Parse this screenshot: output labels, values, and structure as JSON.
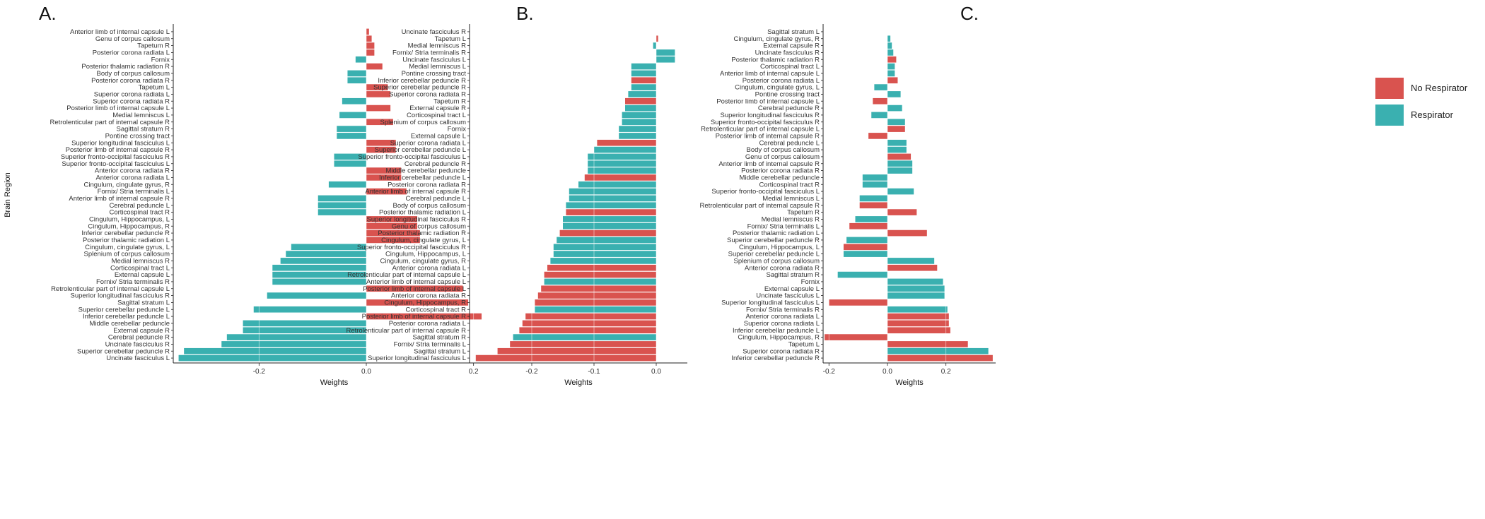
{
  "colors": {
    "no_respirator": "#d9534f",
    "respirator": "#3ab0b0",
    "axis": "#222222",
    "grid": "#ffffff"
  },
  "legend": [
    {
      "key": "no_respirator",
      "label": "No Respirator"
    },
    {
      "key": "respirator",
      "label": "Respirator"
    }
  ],
  "chart_data": [
    {
      "panel": "A.",
      "type": "bar",
      "orientation": "horizontal",
      "xlabel": "Weights",
      "ylabel": "Brain Region",
      "xticks": [
        -0.2,
        0.0,
        0.2
      ],
      "tick_labels": [
        "-0.2",
        "0.0",
        "0.2"
      ],
      "xlim": [
        -0.36,
        0.24
      ],
      "categories": [
        "Anterior limb of internal capsule L",
        "Genu of corpus callosum",
        "Tapetum R",
        "Posterior corona radiata L",
        "Fornix",
        "Posterior thalamic radiation R",
        "Body of corpus callosum",
        "Posterior corona radiata R",
        "Tapetum L",
        "Superior corona radiata L",
        "Superior corona radiata R",
        "Posterior limb of internal capsule L",
        "Medial lemniscus L",
        "Retrolenticular part of internal capsule R",
        "Sagittal stratum R",
        "Pontine crossing tract",
        "Superior longitudinal fasciculus L",
        "Posterior limb of internal capsule R",
        "Superior fronto-occipital fasciculus R",
        "Superior fronto-occipital fasciculus L",
        "Anterior corona radiata R",
        "Anterior corona radiata L",
        "Cingulum, cingulate gyrus, R",
        "Fornix/ Stria terminalis L",
        "Anterior limb of internal capsule R",
        "Cerebral peduncle L",
        "Corticospinal tract R",
        "Cingulum, Hippocampus, L",
        "Cingulum, Hippocampus, R",
        "Inferior cerebellar peduncle R",
        "Posterior thalamic radiation L",
        "Cingulum, cingulate gyrus, L",
        "Splenium of corpus callosum",
        "Medial lemniscus R",
        "Corticospinal tract L",
        "External capsule L",
        "Fornix/ Stria terminalis R",
        "Retrolenticular part of internal capsule L",
        "Superior longitudinal fasciculus R",
        "Sagittal stratum L",
        "Superior cerebellar peduncle L",
        "Inferior cerebellar peduncle L",
        "Middle cerebellar peduncle",
        "External capsule R",
        "Cerebral peduncle R",
        "Uncinate fasciculus R",
        "Superior cerebellar peduncle R",
        "Uncinate fasciculus L"
      ],
      "series": [
        {
          "name": "No Respirator",
          "values": [
            0.005,
            0.01,
            0.015,
            0.015,
            0.0,
            0.03,
            0.0,
            0.0,
            0.04,
            0.045,
            0.0,
            0.045,
            0.0,
            0.05,
            0.0,
            0.0,
            0.055,
            0.055,
            0.0,
            0.0,
            0.065,
            0.065,
            0.0,
            0.075,
            0.0,
            0.0,
            0.0,
            0.095,
            0.095,
            0.1,
            0.1,
            0.0,
            0.0,
            0.0,
            0.0,
            0.0,
            0.0,
            0.18,
            0.0,
            0.19,
            0.0,
            0.215,
            0.0,
            0.0,
            0.0,
            0.0,
            0.0,
            0.0
          ]
        },
        {
          "name": "Respirator",
          "values": [
            0.0,
            0.0,
            0.0,
            0.0,
            -0.02,
            0.0,
            -0.035,
            -0.035,
            0.0,
            0.0,
            -0.045,
            0.0,
            -0.05,
            0.0,
            -0.055,
            -0.055,
            0.0,
            0.0,
            -0.06,
            -0.06,
            0.0,
            0.0,
            -0.07,
            0.0,
            -0.09,
            -0.09,
            -0.09,
            0.0,
            0.0,
            0.0,
            0.0,
            -0.14,
            -0.15,
            -0.16,
            -0.175,
            -0.175,
            -0.175,
            0.0,
            -0.185,
            0.0,
            -0.21,
            0.0,
            -0.23,
            -0.23,
            -0.26,
            -0.27,
            -0.34,
            -0.35
          ]
        }
      ]
    },
    {
      "panel": "B.",
      "type": "bar",
      "orientation": "horizontal",
      "xlabel": "Weights",
      "ylabel": "",
      "xticks": [
        -0.2,
        -0.1,
        0.0
      ],
      "tick_labels": [
        "-0.2",
        "-0.1",
        "0.0"
      ],
      "xlim": [
        -0.3,
        0.05
      ],
      "categories": [
        "Uncinate fasciculus R",
        "Tapetum L",
        "Medial lemniscus R",
        "Fornix/ Stria terminalis R",
        "Uncinate fasciculus L",
        "Medial lemniscus L",
        "Pontine crossing tract",
        "Inferior cerebellar peduncle R",
        "Superior cerebellar peduncle R",
        "Superior corona radiata R",
        "Tapetum R",
        "External capsule R",
        "Corticospinal tract L",
        "Splenium of corpus callosum",
        "Fornix",
        "External capsule L",
        "Superior corona radiata L",
        "Superior cerebellar peduncle L",
        "Superior fronto-occipital fasciculus L",
        "Cerebral peduncle R",
        "Middle cerebellar peduncle",
        "Inferior cerebellar peduncle L",
        "Posterior corona radiata R",
        "Anterior limb of internal capsule R",
        "Cerebral peduncle L",
        "Body of corpus callosum",
        "Posterior thalamic radiation L",
        "Superior longitudinal fasciculus R",
        "Genu of corpus callosum",
        "Posterior thalamic radiation R",
        "Cingulum, cingulate gyrus, L",
        "Superior fronto-occipital fasciculus R",
        "Cingulum, Hippocampus, L",
        "Cingulum, cingulate gyrus, R",
        "Anterior corona radiata L",
        "Retrolenticular part of internal capsule L",
        "Anterior limb of internal capsule L",
        "Posterior limb of internal capsule L",
        "Anterior corona radiata R",
        "Cingulum, Hippocampus, R",
        "Corticospinal tract R",
        "Posterior limb of internal capsule R",
        "Posterior corona radiata L",
        "Retrolenticular part of internal capsule R",
        "Sagittal stratum R",
        "Fornix/ Stria terminalis L",
        "Sagittal stratum L",
        "Superior longitudinal fasciculus L"
      ],
      "series": [
        {
          "name": "No Respirator",
          "values": [
            0.0,
            0.003,
            0.0,
            0.0,
            0.0,
            0.0,
            0.0,
            -0.04,
            0.0,
            0.0,
            -0.05,
            0.0,
            0.0,
            0.0,
            0.0,
            0.0,
            -0.095,
            0.0,
            0.0,
            0.0,
            0.0,
            -0.115,
            0.0,
            0.0,
            0.0,
            0.0,
            -0.145,
            0.0,
            0.0,
            -0.155,
            0.0,
            0.0,
            0.0,
            0.0,
            -0.175,
            -0.18,
            0.0,
            -0.185,
            -0.19,
            -0.195,
            0.0,
            -0.21,
            -0.215,
            -0.22,
            0.0,
            -0.235,
            -0.255,
            -0.29
          ]
        },
        {
          "name": "Respirator",
          "values": [
            0.0,
            0.0,
            -0.005,
            0.03,
            0.03,
            -0.04,
            -0.04,
            0.0,
            -0.04,
            -0.045,
            0.0,
            -0.05,
            -0.055,
            -0.055,
            -0.06,
            -0.06,
            0.0,
            -0.1,
            -0.11,
            -0.11,
            -0.11,
            0.0,
            -0.125,
            -0.14,
            -0.14,
            -0.145,
            0.0,
            -0.15,
            -0.15,
            0.0,
            -0.16,
            -0.165,
            -0.165,
            -0.17,
            0.0,
            0.0,
            -0.18,
            0.0,
            0.0,
            0.0,
            -0.195,
            0.0,
            0.0,
            0.0,
            -0.23,
            0.0,
            0.0,
            0.0
          ]
        }
      ]
    },
    {
      "panel": "C.",
      "type": "bar",
      "orientation": "horizontal",
      "xlabel": "Weights",
      "ylabel": "",
      "xticks": [
        -0.2,
        0.0,
        0.2
      ],
      "tick_labels": [
        "-0.2",
        "0.0",
        "0.2"
      ],
      "xlim": [
        -0.22,
        0.37
      ],
      "categories": [
        "Sagittal stratum L",
        "Cingulum, cingulate gyrus, R",
        "External capsule R",
        "Uncinate fasciculus R",
        "Posterior thalamic radiation R",
        "Corticospinal tract L",
        "Anterior limb of internal capsule L",
        "Posterior corona radiata L",
        "Cingulum, cingulate gyrus, L",
        "Pontine crossing tract",
        "Posterior limb of internal capsule L",
        "Cerebral peduncle R",
        "Superior longitudinal fasciculus R",
        "Superior fronto-occipital fasciculus R",
        "Retrolenticular part of internal capsule L",
        "Posterior limb of internal capsule R",
        "Cerebral peduncle L",
        "Body of corpus callosum",
        "Genu of corpus callosum",
        "Anterior limb of internal capsule R",
        "Posterior corona radiata R",
        "Middle cerebellar peduncle",
        "Corticospinal tract R",
        "Superior fronto-occipital fasciculus L",
        "Medial lemniscus L",
        "Retrolenticular part of internal capsule R",
        "Tapetum R",
        "Medial lemniscus R",
        "Fornix/ Stria terminalis L",
        "Posterior thalamic radiation L",
        "Superior cerebellar peduncle R",
        "Cingulum, Hippocampus, L",
        "Superior cerebellar peduncle L",
        "Splenium of corpus callosum",
        "Anterior corona radiata R",
        "Sagittal stratum R",
        "Fornix",
        "External capsule L",
        "Uncinate fasciculus L",
        "Superior longitudinal fasciculus L",
        "Fornix/ Stria terminalis R",
        "Anterior corona radiata L",
        "Superior corona radiata L",
        "Inferior cerebellar peduncle L",
        "Cingulum, Hippocampus, R",
        "Tapetum L",
        "Superior corona radiata R",
        "Inferior cerebellar peduncle R"
      ],
      "series": [
        {
          "name": "No Respirator",
          "values": [
            0.0,
            0.0,
            0.0,
            0.0,
            0.03,
            0.0,
            0.0,
            0.035,
            0.0,
            0.0,
            -0.05,
            0.0,
            0.0,
            0.0,
            0.06,
            -0.065,
            0.0,
            0.0,
            0.08,
            0.0,
            0.0,
            0.0,
            0.0,
            0.0,
            0.0,
            -0.095,
            0.1,
            0.0,
            -0.13,
            0.135,
            0.0,
            -0.15,
            0.0,
            0.0,
            0.17,
            0.0,
            0.0,
            0.0,
            0.0,
            -0.2,
            0.0,
            0.21,
            0.21,
            0.215,
            -0.215,
            0.275,
            0.0,
            0.36
          ]
        },
        {
          "name": "Respirator",
          "values": [
            0.0,
            0.01,
            0.015,
            0.02,
            0.0,
            0.025,
            0.025,
            0.0,
            -0.045,
            0.045,
            0.0,
            0.05,
            -0.055,
            0.06,
            0.0,
            0.0,
            0.065,
            0.065,
            0.0,
            0.085,
            0.085,
            -0.085,
            -0.085,
            0.09,
            -0.095,
            0.0,
            0.0,
            -0.11,
            0.0,
            0.0,
            -0.14,
            0.0,
            -0.15,
            0.16,
            0.0,
            -0.17,
            0.19,
            0.195,
            0.195,
            0.0,
            0.205,
            0.0,
            0.0,
            0.0,
            0.0,
            0.0,
            0.345,
            0.0
          ]
        }
      ]
    }
  ]
}
